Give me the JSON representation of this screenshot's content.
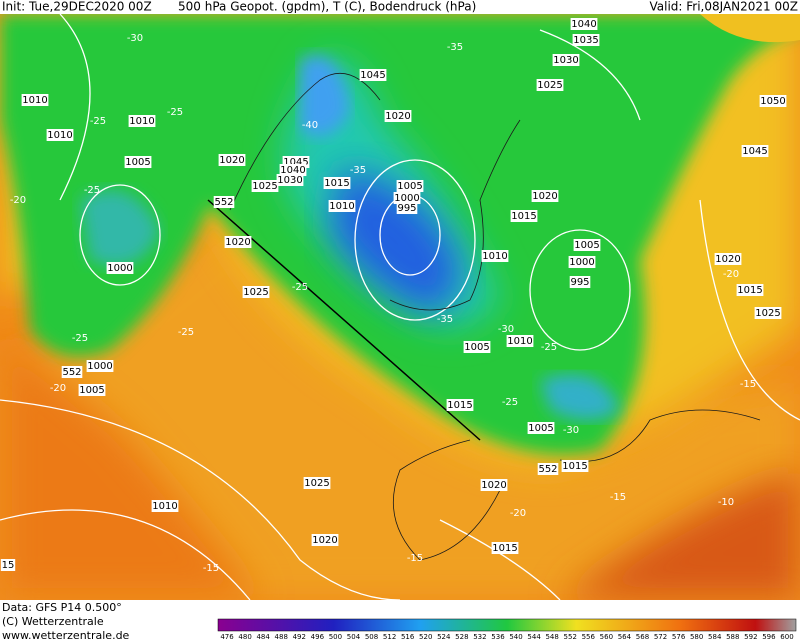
{
  "header": {
    "init": "Init: Tue,29DEC2020 00Z",
    "title": "500 hPa Geopot. (gpdm), T (C), Bodendruck (hPa)",
    "valid": "Valid: Fri,08JAN2021 00Z"
  },
  "footer": {
    "data": "Data: GFS P14 0.500°",
    "copyright": "(C) Wetterzentrale",
    "url": "www.wetterzentrale.de"
  },
  "colorbar": {
    "labels": [
      476,
      480,
      484,
      488,
      492,
      496,
      500,
      504,
      508,
      512,
      516,
      520,
      524,
      528,
      532,
      536,
      540,
      544,
      548,
      552,
      556,
      560,
      564,
      568,
      572,
      576,
      580,
      584,
      588,
      592,
      596,
      600
    ]
  },
  "map_labels": [
    "-30",
    "1010",
    "1010",
    "-25",
    "1010",
    "-25",
    "1005",
    "1020",
    "-25",
    "-20",
    "1000",
    "-25",
    "552",
    "1000",
    "1005",
    "-20",
    "1020",
    "1025",
    "-25",
    "-25",
    "1010",
    "1025",
    "1020",
    "-15",
    "15",
    "1015",
    "1015",
    "552",
    "1020",
    "-20",
    "1015",
    "-15",
    "-15",
    "-10",
    "-15",
    "1025",
    "1015",
    "-20",
    "1020",
    "1045",
    "1050",
    "1040",
    "1035",
    "1030",
    "1025",
    "-35",
    "1045",
    "1020",
    "-40",
    "1045",
    "1040",
    "1030",
    "1025",
    "1015",
    "-35",
    "552",
    "1010",
    "1005",
    "1000",
    "995",
    "1015",
    "1020",
    "1005",
    "1000",
    "995",
    "1010",
    "-35",
    "-30",
    "1005",
    "1010",
    "-25",
    "1005",
    "-30",
    "-25"
  ]
}
